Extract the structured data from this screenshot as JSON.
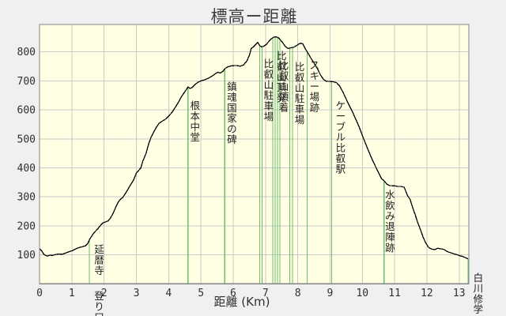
{
  "chart_data": {
    "type": "line",
    "title": "標高ー距離",
    "xlabel": "距離 (Km)",
    "ylabel": "",
    "xlim": [
      0,
      13.3
    ],
    "ylim": [
      0,
      893
    ],
    "x_ticks": [
      0,
      1,
      2,
      3,
      4,
      5,
      6,
      7,
      8,
      9,
      10,
      11,
      12,
      13
    ],
    "y_ticks": [
      100,
      200,
      300,
      400,
      500,
      600,
      700,
      800
    ],
    "grid": true,
    "legend": "none",
    "colors": {
      "page_bg": "#f0f0f0",
      "plot_bg": "#ffffe3",
      "grid": "#c9c9c9",
      "border": "#858585",
      "line": "#000000",
      "waypoint_line": "#6cbd6c",
      "tick_text": "#303030",
      "annotation_text": "#1e1e1e",
      "title_text": "#3c3c3c"
    },
    "series": [
      {
        "name": "標高",
        "points": [
          [
            0,
            122
          ],
          [
            0.07,
            113
          ],
          [
            0.12,
            104
          ],
          [
            0.18,
            98
          ],
          [
            0.25,
            96
          ],
          [
            0.32,
            99
          ],
          [
            0.4,
            98
          ],
          [
            0.5,
            101
          ],
          [
            0.6,
            103
          ],
          [
            0.7,
            102
          ],
          [
            0.8,
            106
          ],
          [
            0.9,
            110
          ],
          [
            1.0,
            114
          ],
          [
            1.1,
            119
          ],
          [
            1.17,
            123
          ],
          [
            1.25,
            126
          ],
          [
            1.33,
            128
          ],
          [
            1.42,
            131
          ],
          [
            1.5,
            140
          ],
          [
            1.55,
            153
          ],
          [
            1.62,
            165
          ],
          [
            1.68,
            175
          ],
          [
            1.75,
            183
          ],
          [
            1.82,
            192
          ],
          [
            1.9,
            203
          ],
          [
            1.97,
            211
          ],
          [
            2.05,
            214
          ],
          [
            2.12,
            217
          ],
          [
            2.2,
            227
          ],
          [
            2.28,
            244
          ],
          [
            2.36,
            264
          ],
          [
            2.44,
            282
          ],
          [
            2.5,
            291
          ],
          [
            2.58,
            298
          ],
          [
            2.65,
            310
          ],
          [
            2.72,
            322
          ],
          [
            2.8,
            338
          ],
          [
            2.87,
            350
          ],
          [
            2.93,
            362
          ],
          [
            3.0,
            382
          ],
          [
            3.07,
            391
          ],
          [
            3.14,
            400
          ],
          [
            3.2,
            423
          ],
          [
            3.3,
            450
          ],
          [
            3.38,
            482
          ],
          [
            3.45,
            505
          ],
          [
            3.53,
            522
          ],
          [
            3.62,
            540
          ],
          [
            3.7,
            553
          ],
          [
            3.78,
            560
          ],
          [
            3.88,
            566
          ],
          [
            3.98,
            576
          ],
          [
            4.1,
            591
          ],
          [
            4.2,
            608
          ],
          [
            4.3,
            626
          ],
          [
            4.4,
            646
          ],
          [
            4.5,
            662
          ],
          [
            4.6,
            679
          ],
          [
            4.66,
            674
          ],
          [
            4.73,
            677
          ],
          [
            4.82,
            688
          ],
          [
            4.92,
            696
          ],
          [
            5.0,
            700
          ],
          [
            5.12,
            704
          ],
          [
            5.23,
            709
          ],
          [
            5.35,
            717
          ],
          [
            5.45,
            725
          ],
          [
            5.52,
            730
          ],
          [
            5.6,
            727
          ],
          [
            5.68,
            733
          ],
          [
            5.76,
            744
          ],
          [
            5.85,
            749
          ],
          [
            5.95,
            752
          ],
          [
            6.1,
            753
          ],
          [
            6.22,
            751
          ],
          [
            6.32,
            755
          ],
          [
            6.42,
            768
          ],
          [
            6.5,
            788
          ],
          [
            6.56,
            812
          ],
          [
            6.63,
            818
          ],
          [
            6.7,
            826
          ],
          [
            6.76,
            833
          ],
          [
            6.82,
            822
          ],
          [
            6.88,
            817
          ],
          [
            6.95,
            820
          ],
          [
            7.03,
            826
          ],
          [
            7.1,
            836
          ],
          [
            7.18,
            845
          ],
          [
            7.26,
            851
          ],
          [
            7.33,
            852
          ],
          [
            7.4,
            849
          ],
          [
            7.47,
            840
          ],
          [
            7.54,
            831
          ],
          [
            7.62,
            818
          ],
          [
            7.7,
            812
          ],
          [
            7.78,
            814
          ],
          [
            7.87,
            816
          ],
          [
            7.95,
            821
          ],
          [
            8.03,
            827
          ],
          [
            8.1,
            830
          ],
          [
            8.16,
            827
          ],
          [
            8.22,
            813
          ],
          [
            8.3,
            799
          ],
          [
            8.4,
            780
          ],
          [
            8.5,
            762
          ],
          [
            8.6,
            744
          ],
          [
            8.7,
            721
          ],
          [
            8.8,
            705
          ],
          [
            8.88,
            699
          ],
          [
            9.0,
            698
          ],
          [
            9.1,
            697
          ],
          [
            9.2,
            694
          ],
          [
            9.3,
            682
          ],
          [
            9.4,
            661
          ],
          [
            9.5,
            637
          ],
          [
            9.6,
            614
          ],
          [
            9.7,
            592
          ],
          [
            9.8,
            567
          ],
          [
            9.9,
            542
          ],
          [
            10.0,
            512
          ],
          [
            10.1,
            484
          ],
          [
            10.2,
            457
          ],
          [
            10.3,
            430
          ],
          [
            10.4,
            407
          ],
          [
            10.5,
            384
          ],
          [
            10.6,
            362
          ],
          [
            10.68,
            355
          ],
          [
            10.76,
            344
          ],
          [
            10.85,
            339
          ],
          [
            11.0,
            338
          ],
          [
            11.1,
            336
          ],
          [
            11.2,
            336
          ],
          [
            11.3,
            333
          ],
          [
            11.4,
            305
          ],
          [
            11.48,
            291
          ],
          [
            11.56,
            263
          ],
          [
            11.64,
            238
          ],
          [
            11.72,
            210
          ],
          [
            11.8,
            187
          ],
          [
            11.88,
            162
          ],
          [
            11.96,
            142
          ],
          [
            12.05,
            126
          ],
          [
            12.15,
            120
          ],
          [
            12.25,
            118
          ],
          [
            12.33,
            123
          ],
          [
            12.42,
            121
          ],
          [
            12.52,
            119
          ],
          [
            12.62,
            112
          ],
          [
            12.72,
            108
          ],
          [
            12.82,
            104
          ],
          [
            12.92,
            101
          ],
          [
            13.02,
            97
          ],
          [
            13.12,
            94
          ],
          [
            13.2,
            90
          ],
          [
            13.27,
            86
          ]
        ]
      }
    ],
    "annotations": [
      {
        "lines": [
          1.543
        ],
        "labels": [
          {
            "text": "延暦寺",
            "x_km": 1.85,
            "y": 309
          },
          {
            "text": "登り口",
            "x_km": 1.85,
            "y": 368
          }
        ]
      },
      {
        "lines": [
          4.598
        ],
        "labels": [
          {
            "text": "根本中堂",
            "x_km": 4.82,
            "y": 127
          }
        ]
      },
      {
        "lines": [
          5.74
        ],
        "labels": [
          {
            "text": "鎮魂国家の碑",
            "x_km": 5.96,
            "y": 103
          }
        ]
      },
      {
        "lines": [
          6.821,
          6.895
        ],
        "labels": [
          {
            "text": "比叡山駐車場",
            "x_km": 7.1,
            "y": 74
          }
        ]
      },
      {
        "lines": [
          7.225,
          7.299,
          7.372,
          7.446
        ],
        "labels": [
          {
            "text": "比叡山頂発",
            "x_km": 7.5,
            "y": 64
          },
          {
            "text": "比叡山頂着",
            "x_km": 7.57,
            "y": 76
          }
        ]
      },
      {
        "lines": [
          7.752,
          7.838
        ],
        "labels": [
          {
            "text": "比叡山駐車場",
            "x_km": 8.06,
            "y": 78
          }
        ]
      },
      {
        "lines": [
          8.291
        ],
        "labels": [
          {
            "text": "スキー場跡",
            "x_km": 8.52,
            "y": 76
          }
        ]
      },
      {
        "lines": [
          9.051
        ],
        "labels": [
          {
            "text": "ケーブル比叡駅",
            "x_km": 9.33,
            "y": 127
          }
        ]
      },
      {
        "lines": [
          10.672
        ],
        "labels": [
          {
            "text": "水飲み退陣跡",
            "x_km": 10.86,
            "y": 240
          }
        ]
      },
      {
        "lines": [
          13.276
        ],
        "labels": [
          {
            "text": "白川修学",
            "x_km": 13.59,
            "y": 345
          }
        ]
      }
    ]
  }
}
